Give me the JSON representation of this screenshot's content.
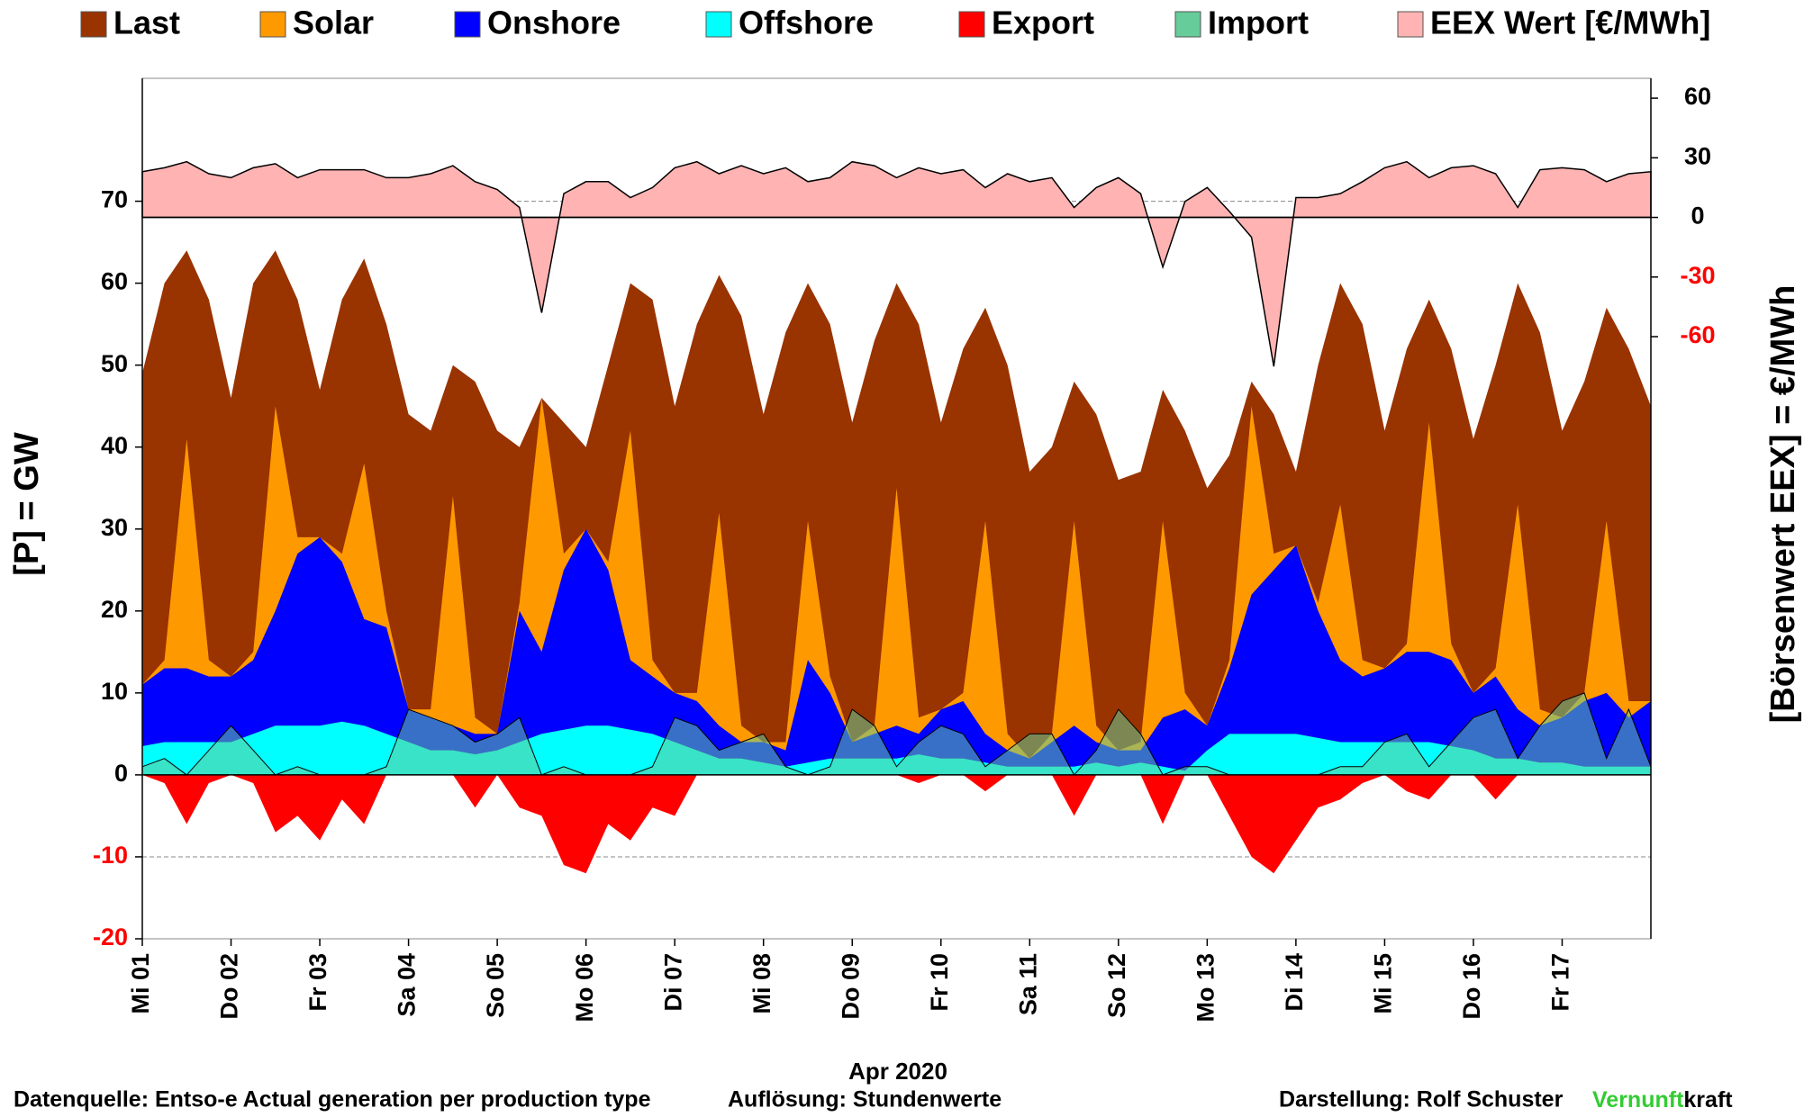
{
  "chart_data": {
    "type": "area",
    "x": [
      1,
      1.25,
      1.5,
      1.75,
      2,
      2.25,
      2.5,
      2.75,
      3,
      3.25,
      3.5,
      3.75,
      4,
      4.25,
      4.5,
      4.75,
      5,
      5.25,
      5.5,
      5.75,
      6,
      6.25,
      6.5,
      6.75,
      7,
      7.25,
      7.5,
      7.75,
      8,
      8.25,
      8.5,
      8.75,
      9,
      9.25,
      9.5,
      9.75,
      10,
      10.25,
      10.5,
      10.75,
      11,
      11.25,
      11.5,
      11.75,
      12,
      12.25,
      12.5,
      12.75,
      13,
      13.25,
      13.5,
      13.75,
      14,
      14.25,
      14.5,
      14.75,
      15,
      15.25,
      15.5,
      15.75,
      16,
      16.25,
      16.5,
      16.75,
      17,
      17.25,
      17.5,
      17.75,
      18
    ],
    "xlim": [
      1,
      18
    ],
    "xticks": [
      {
        "value": 1,
        "label": "Mi 01"
      },
      {
        "value": 2,
        "label": "Do 02"
      },
      {
        "value": 3,
        "label": "Fr 03"
      },
      {
        "value": 4,
        "label": "Sa 04"
      },
      {
        "value": 5,
        "label": "So 05"
      },
      {
        "value": 6,
        "label": "Mo 06"
      },
      {
        "value": 7,
        "label": "Di 07"
      },
      {
        "value": 8,
        "label": "Mi 08"
      },
      {
        "value": 9,
        "label": "Do 09"
      },
      {
        "value": 10,
        "label": "Fr 10"
      },
      {
        "value": 11,
        "label": "Sa 11"
      },
      {
        "value": 12,
        "label": "So 12"
      },
      {
        "value": 13,
        "label": "Mo 13"
      },
      {
        "value": 14,
        "label": "Di 14"
      },
      {
        "value": 15,
        "label": "Mi 15"
      },
      {
        "value": 16,
        "label": "Do 16"
      },
      {
        "value": 17,
        "label": "Fr 17"
      }
    ],
    "xlabel": "Apr 2020",
    "ylabel": "[P]  =  GW",
    "y2label": "[Börsenwert  EEX]  =  €/MWh",
    "ylim": [
      -20,
      85
    ],
    "yticks": [
      -20,
      -10,
      0,
      10,
      20,
      30,
      40,
      50,
      60,
      70
    ],
    "y2lim": [
      -363,
      70
    ],
    "y2ticks": [
      -60,
      -30,
      0,
      30,
      60
    ],
    "negative_tick_color": "#ff0000",
    "series": [
      {
        "name": "Last",
        "color": "#993300",
        "values": [
          49,
          60,
          64,
          58,
          46,
          60,
          64,
          58,
          47,
          58,
          63,
          55,
          44,
          42,
          50,
          48,
          42,
          40,
          46,
          43,
          40,
          50,
          60,
          58,
          45,
          55,
          61,
          56,
          44,
          54,
          60,
          55,
          43,
          53,
          60,
          55,
          43,
          52,
          57,
          50,
          37,
          40,
          48,
          44,
          36,
          37,
          47,
          42,
          35,
          39,
          48,
          44,
          37,
          50,
          60,
          55,
          42,
          52,
          58,
          52,
          41,
          50,
          60,
          54,
          42,
          48,
          57,
          52,
          45
        ]
      },
      {
        "name": "Solar",
        "color": "#ff9900",
        "stack": true,
        "values": [
          0,
          1,
          28,
          2,
          0,
          1,
          25,
          2,
          0,
          1,
          19,
          2,
          0,
          1,
          28,
          2,
          0,
          1,
          31,
          2,
          0,
          1,
          28,
          2,
          0,
          1,
          26,
          2,
          0,
          1,
          17,
          2,
          0,
          1,
          29,
          2,
          0,
          1,
          26,
          2,
          0,
          1,
          25,
          2,
          0,
          1,
          24,
          2,
          0,
          1,
          23,
          2,
          0,
          1,
          19,
          2,
          0,
          1,
          28,
          2,
          0,
          1,
          25,
          2,
          0,
          1,
          21,
          2,
          0
        ]
      },
      {
        "name": "Onshore",
        "color": "#0000ff",
        "stack": true,
        "values": [
          7.5,
          9,
          9,
          8,
          8,
          9,
          14,
          21,
          23,
          19.5,
          13,
          13,
          4,
          4,
          3,
          2.5,
          2,
          16,
          10,
          19.5,
          24,
          19,
          8.5,
          7,
          6,
          6,
          4,
          2,
          2.5,
          2,
          12.5,
          8,
          2,
          3,
          4,
          2.5,
          6,
          7,
          3.5,
          2,
          1,
          3,
          5,
          2.5,
          2,
          1.5,
          6,
          7.5,
          3,
          8,
          17,
          20,
          23,
          15.5,
          10,
          8,
          9,
          11,
          11,
          10.5,
          7,
          10,
          6,
          4.5,
          5.5,
          8,
          9,
          6,
          8
        ]
      },
      {
        "name": "Offshore",
        "color": "#00ffff",
        "stack": true,
        "values": [
          3.5,
          4,
          4,
          4,
          4,
          5,
          6,
          6,
          6,
          6.5,
          6,
          5,
          4,
          3,
          3,
          2.5,
          3,
          4,
          5,
          5.5,
          6,
          6,
          5.5,
          5,
          4,
          3,
          2,
          2,
          1.5,
          1,
          1.5,
          2,
          2,
          2,
          2,
          2.5,
          2,
          2,
          1.5,
          1,
          1,
          1,
          1,
          1.5,
          1,
          1.5,
          1,
          0.5,
          3,
          5,
          5,
          5,
          5,
          4.5,
          4,
          4,
          4,
          4,
          4,
          3.5,
          3,
          2,
          2,
          1.5,
          1.5,
          1,
          1,
          1,
          1
        ]
      },
      {
        "name": "Export",
        "color": "#ff0000",
        "values": [
          0,
          -1,
          -6,
          -1,
          0,
          -1,
          -7,
          -5,
          -8,
          -3,
          -6,
          0,
          0,
          0,
          0,
          -4,
          0,
          -4,
          -5,
          -11,
          -12,
          -6,
          -8,
          -4,
          -5,
          0,
          0,
          0,
          0,
          0,
          0,
          0,
          0,
          0,
          0,
          -1,
          0,
          0,
          -2,
          0,
          0,
          0,
          -5,
          0,
          0,
          0,
          -6,
          0,
          0,
          -5,
          -10,
          -12,
          -8,
          -4,
          -3,
          -1,
          0,
          -2,
          -3,
          0,
          0,
          -3,
          0,
          0,
          0,
          0,
          0,
          0,
          0
        ]
      },
      {
        "name": "Import",
        "color": "#66cc99",
        "values": [
          1,
          2,
          0,
          3,
          6,
          3,
          0,
          1,
          0,
          0,
          0,
          1,
          8,
          7,
          6,
          4,
          5,
          7,
          0,
          1,
          0,
          0,
          0,
          1,
          7,
          6,
          3,
          4,
          5,
          1,
          0,
          1,
          8,
          6,
          1,
          4,
          6,
          5,
          1,
          3,
          5,
          5,
          0,
          3,
          8,
          5,
          0,
          1,
          1,
          0,
          0,
          0,
          0,
          0,
          1,
          1,
          4,
          5,
          1,
          4,
          7,
          8,
          2,
          6,
          9,
          10,
          2,
          8,
          1
        ]
      },
      {
        "name": "EEX Wert [€/MWh]",
        "color": "#ffb3b3",
        "axis": "y2",
        "values": [
          23,
          25,
          28,
          22,
          20,
          25,
          27,
          20,
          24,
          24,
          24,
          20,
          20,
          22,
          26,
          18,
          14,
          5,
          -48,
          12,
          18,
          18,
          10,
          15,
          25,
          28,
          22,
          26,
          22,
          25,
          18,
          20,
          28,
          26,
          20,
          25,
          22,
          24,
          15,
          22,
          18,
          20,
          5,
          15,
          20,
          12,
          -25,
          8,
          15,
          3,
          -10,
          -75,
          10,
          10,
          12,
          18,
          25,
          28,
          20,
          25,
          26,
          22,
          5,
          24,
          25,
          24,
          18,
          22,
          23
        ]
      }
    ],
    "footer": {
      "source": "Datenquelle: Entso-e   Actual generation per production type",
      "resolution": "Auflösung:  Stundenwerte",
      "author": "Darstellung:   Rolf Schuster",
      "brand_a": "Vernunft",
      "brand_b": "kraft"
    }
  }
}
